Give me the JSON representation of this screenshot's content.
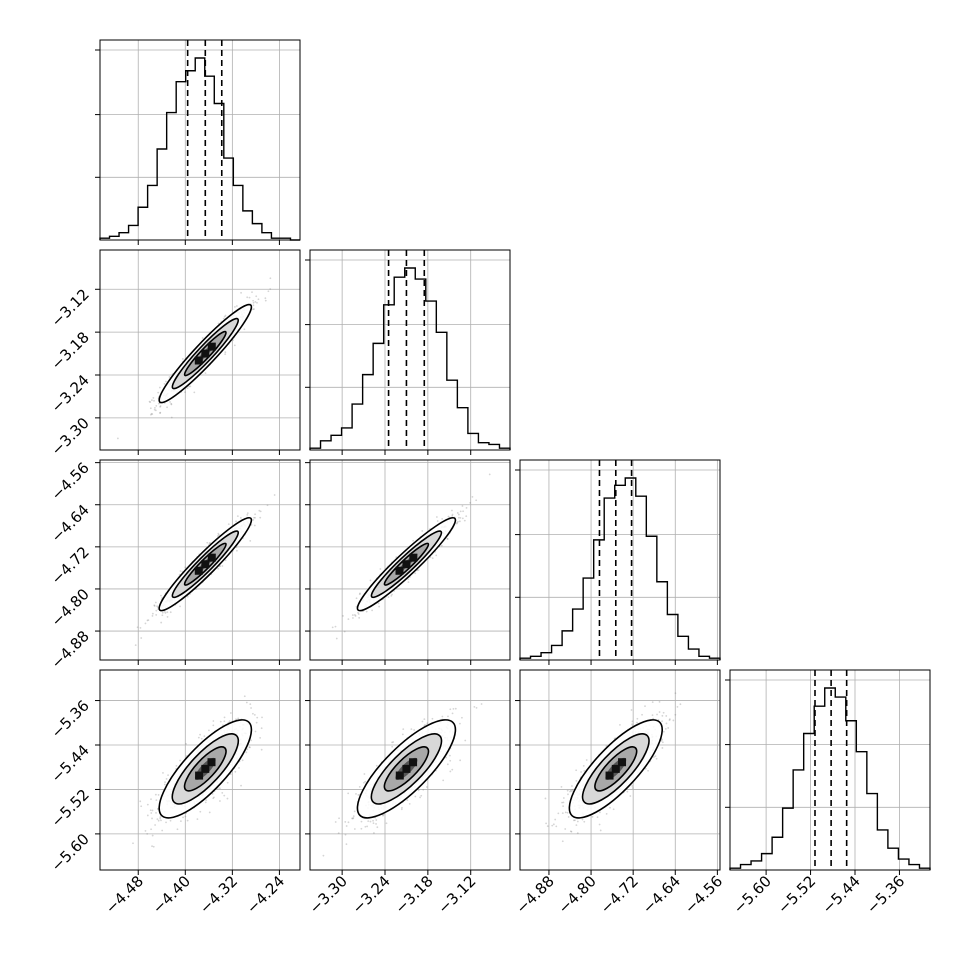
{
  "chart_data": {
    "type": "corner",
    "title": "",
    "grid": true,
    "parameters": [
      {
        "range": [
          -4.545,
          -4.205
        ],
        "ticks": [
          -4.48,
          -4.4,
          -4.32,
          -4.24
        ],
        "tick_labels": [
          "−4.48",
          "−4.40",
          "−4.32",
          "−4.24"
        ],
        "quantiles": [
          -4.396,
          -4.366,
          -4.338
        ],
        "histogram": [
          1,
          2,
          4,
          8,
          18,
          30,
          50,
          70,
          87,
          93,
          100,
          90,
          75,
          45,
          30,
          16,
          9,
          4,
          1,
          1,
          0
        ]
      },
      {
        "range": [
          -3.345,
          -3.065
        ],
        "ticks": [
          -3.3,
          -3.24,
          -3.18,
          -3.12
        ],
        "tick_labels": [
          "−3.30",
          "−3.24",
          "−3.18",
          "−3.12"
        ],
        "quantiles": [
          -3.235,
          -3.21,
          -3.185
        ],
        "histogram": [
          1,
          5,
          8,
          12,
          25,
          41,
          58,
          79,
          94,
          99,
          93,
          81,
          64,
          38,
          23,
          9,
          4,
          3,
          1
        ]
      },
      {
        "range": [
          -4.935,
          -4.555
        ],
        "ticks": [
          -4.88,
          -4.8,
          -4.72,
          -4.64,
          -4.56
        ],
        "tick_labels": [
          "−4.88",
          "−4.80",
          "−4.72",
          "−4.64",
          "−4.56"
        ],
        "quantiles": [
          -4.784,
          -4.753,
          -4.723
        ],
        "histogram": [
          1,
          2,
          4,
          8,
          16,
          28,
          45,
          66,
          89,
          96,
          100,
          90,
          68,
          43,
          25,
          13,
          6,
          2,
          1
        ]
      },
      {
        "range": [
          -5.665,
          -5.305
        ],
        "ticks": [
          -5.6,
          -5.52,
          -5.44,
          -5.36
        ],
        "tick_labels": [
          "−5.60",
          "−5.52",
          "−5.44",
          "−5.36"
        ],
        "quantiles": [
          -5.512,
          -5.483,
          -5.455
        ],
        "histogram": [
          1,
          3,
          5,
          9,
          18,
          34,
          55,
          75,
          90,
          100,
          95,
          82,
          65,
          42,
          22,
          12,
          6,
          3,
          1
        ]
      }
    ],
    "correlations": [
      [
        1.0,
        0.95,
        0.95,
        0.8
      ],
      [
        0.95,
        1.0,
        0.95,
        0.8
      ],
      [
        0.95,
        0.95,
        1.0,
        0.8
      ],
      [
        0.8,
        0.8,
        0.8,
        1.0
      ]
    ],
    "stds": [
      0.032,
      0.028,
      0.036,
      0.036
    ],
    "means": [
      -4.366,
      -3.21,
      -4.753,
      -5.483
    ]
  }
}
